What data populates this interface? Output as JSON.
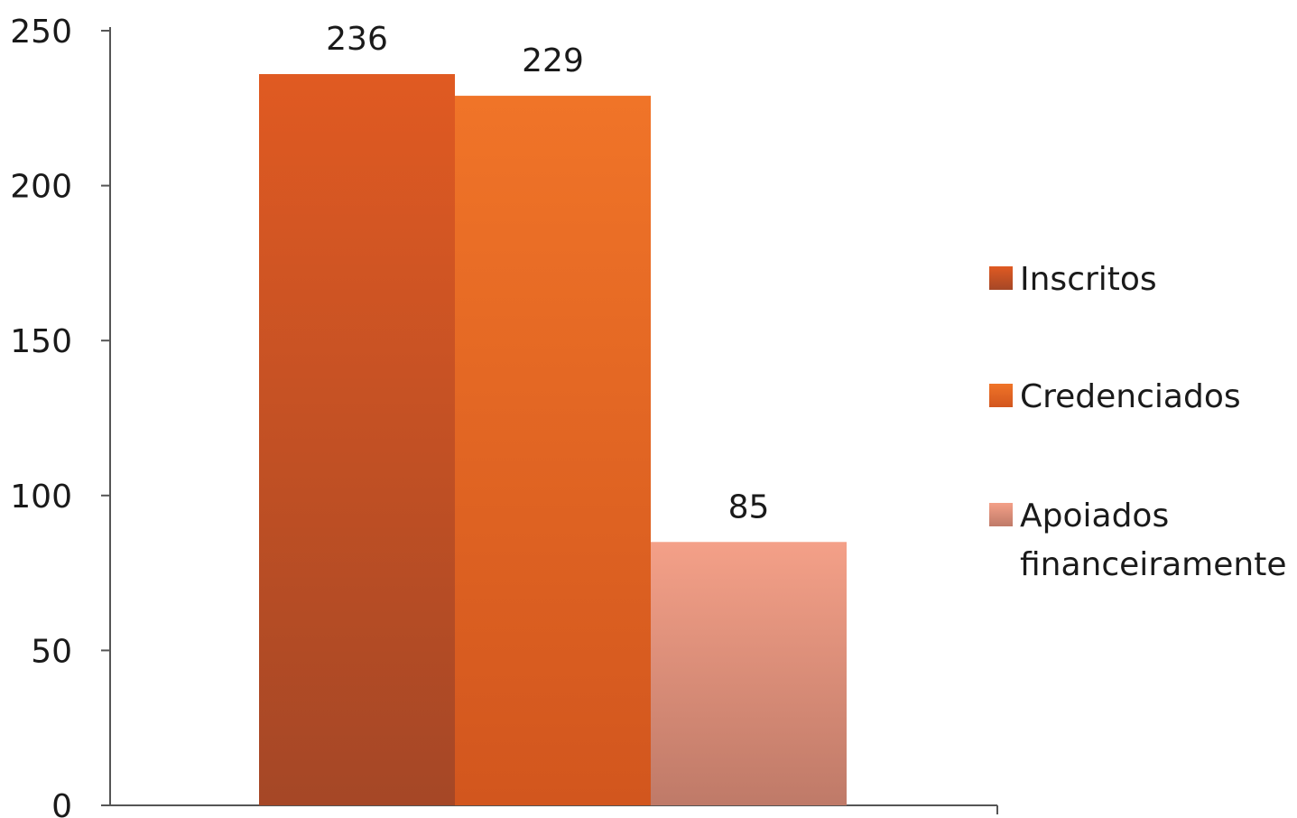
{
  "chart_data": {
    "type": "bar",
    "categories": [
      ""
    ],
    "series": [
      {
        "name": "Inscritos",
        "values": [
          236
        ],
        "color": "#c9502a"
      },
      {
        "name": "Credenciados",
        "values": [
          229
        ],
        "color": "#ec6424"
      },
      {
        "name": "Apoiados financeiramente",
        "values": [
          85
        ],
        "color": "#ea9a82"
      }
    ],
    "title": "",
    "xlabel": "",
    "ylabel": "",
    "ylim": [
      0,
      250
    ],
    "yticks": [
      0,
      50,
      100,
      150,
      200,
      250
    ],
    "grid": false,
    "legend": "right",
    "data_labels": true
  }
}
